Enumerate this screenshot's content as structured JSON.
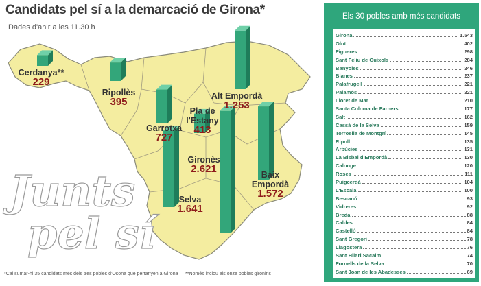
{
  "title": "Candidats pel sí a la demarcació de Girona*",
  "subtitle": "Dades d'ahir a les 11.30 h",
  "regions": [
    {
      "name": "Cerdanya**",
      "value": 229,
      "value_label": "229"
    },
    {
      "name": "Ripollès",
      "value": 395,
      "value_label": "395"
    },
    {
      "name": "Alt Empordà",
      "value": 1253,
      "value_label": "1.253"
    },
    {
      "name": "Garrotxa",
      "value": 727,
      "value_label": "727"
    },
    {
      "name": "Pla de l'Estany",
      "value": 413,
      "value_label": "413"
    },
    {
      "name": "Gironès",
      "value": 2621,
      "value_label": "2.621"
    },
    {
      "name": "Selva",
      "value": 1641,
      "value_label": "1.641"
    },
    {
      "name": "Baix Empordà",
      "value": 1572,
      "value_label": "1.572"
    }
  ],
  "logo": {
    "line1": "Junts",
    "line2": "pel sí"
  },
  "footnotes": [
    "*Cal sumar-hi 35 candidats més dels tres pobles d'Osona que pertanyen a Girona",
    "**Només inclou els onze pobles gironins"
  ],
  "table": {
    "title": "Els 30 pobles amb més candidats",
    "rows": [
      [
        "Girona",
        "1.543"
      ],
      [
        "Olot",
        "402"
      ],
      [
        "Figueres",
        "298"
      ],
      [
        "Sant Feliu de Guíxols",
        "284"
      ],
      [
        "Banyoles",
        "246"
      ],
      [
        "Blanes",
        "237"
      ],
      [
        "Palafrugell",
        "221"
      ],
      [
        "Palamós",
        "221"
      ],
      [
        "Lloret de Mar",
        "210"
      ],
      [
        "Santa Coloma de Farners",
        "177"
      ],
      [
        "Salt",
        "162"
      ],
      [
        "Cassà de la Selva",
        "159"
      ],
      [
        "Torroella de Montgrí",
        "145"
      ],
      [
        "Ripoll",
        "135"
      ],
      [
        "Arbúcies",
        "131"
      ],
      [
        "La Bisbal d'Empordà",
        "130"
      ],
      [
        "Calonge",
        "120"
      ],
      [
        "Roses",
        "111"
      ],
      [
        "Puigcerdà",
        "104"
      ],
      [
        "L'Escala",
        "100"
      ],
      [
        "Bescanó",
        "93"
      ],
      [
        "Vidreres",
        "92"
      ],
      [
        "Breda",
        "88"
      ],
      [
        "Caldes",
        "84"
      ],
      [
        "Castelló",
        "84"
      ],
      [
        "Sant Gregori",
        "78"
      ],
      [
        "Llagostera",
        "76"
      ],
      [
        "Sant Hilari Sacalm",
        "74"
      ],
      [
        "Fornells de la Selva",
        "70"
      ],
      [
        "Sant Joan de les Abadesses",
        "69"
      ]
    ]
  }
}
